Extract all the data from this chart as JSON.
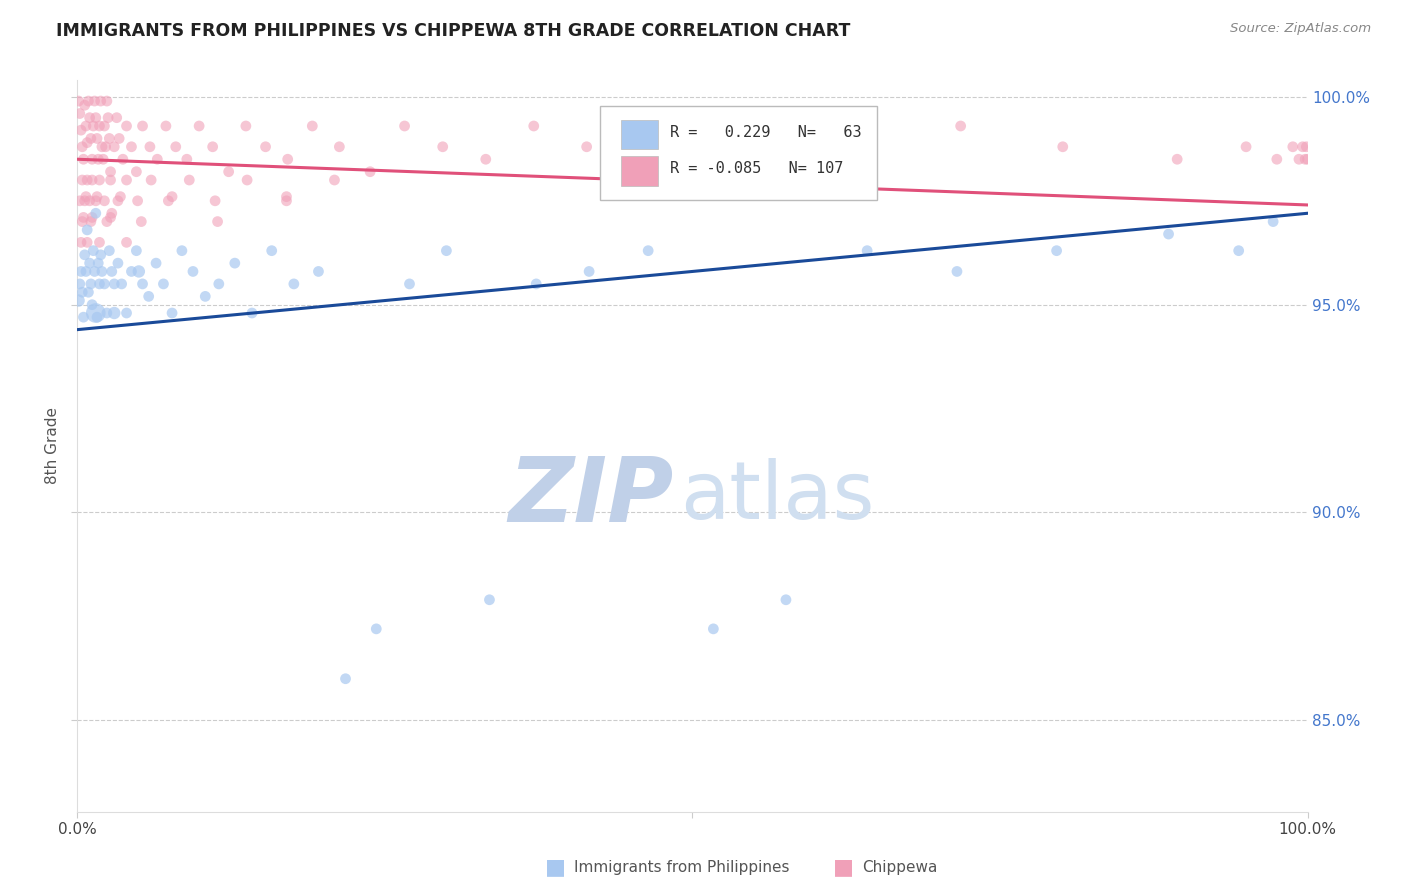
{
  "title": "IMMIGRANTS FROM PHILIPPINES VS CHIPPEWA 8TH GRADE CORRELATION CHART",
  "source_text": "Source: ZipAtlas.com",
  "ylabel": "8th Grade",
  "xlim": [
    0.0,
    1.0
  ],
  "ylim": [
    0.828,
    1.004
  ],
  "yticks": [
    0.85,
    0.9,
    0.95,
    1.0
  ],
  "ytick_labels": [
    "85.0%",
    "90.0%",
    "95.0%",
    "100.0%"
  ],
  "legend_r_blue": "0.229",
  "legend_n_blue": "63",
  "legend_r_pink": "-0.085",
  "legend_n_pink": "107",
  "blue_color": "#A8C8F0",
  "pink_color": "#F0A0B8",
  "blue_line_color": "#1A4A99",
  "pink_line_color": "#E0507A",
  "wm_zip_color": "#C0D0E8",
  "wm_atlas_color": "#D0DFF0",
  "blue_trend_x0": 0.0,
  "blue_trend_y0": 0.944,
  "blue_trend_x1": 1.0,
  "blue_trend_y1": 0.972,
  "pink_trend_x0": 0.0,
  "pink_trend_y0": 0.985,
  "pink_trend_x1": 1.0,
  "pink_trend_y1": 0.974,
  "blue_x": [
    0.001,
    0.002,
    0.003,
    0.004,
    0.005,
    0.006,
    0.007,
    0.008,
    0.009,
    0.01,
    0.011,
    0.012,
    0.013,
    0.014,
    0.015,
    0.016,
    0.017,
    0.018,
    0.019,
    0.02,
    0.022,
    0.024,
    0.026,
    0.028,
    0.03,
    0.033,
    0.036,
    0.04,
    0.044,
    0.048,
    0.053,
    0.058,
    0.064,
    0.07,
    0.077,
    0.085,
    0.094,
    0.104,
    0.115,
    0.128,
    0.142,
    0.158,
    0.176,
    0.196,
    0.218,
    0.243,
    0.27,
    0.3,
    0.335,
    0.373,
    0.416,
    0.464,
    0.517,
    0.576,
    0.642,
    0.715,
    0.796,
    0.887,
    0.944,
    0.972,
    0.015,
    0.03,
    0.05
  ],
  "blue_y": [
    0.951,
    0.955,
    0.958,
    0.953,
    0.947,
    0.962,
    0.958,
    0.968,
    0.953,
    0.96,
    0.955,
    0.95,
    0.963,
    0.958,
    0.972,
    0.947,
    0.96,
    0.955,
    0.962,
    0.958,
    0.955,
    0.948,
    0.963,
    0.958,
    0.955,
    0.96,
    0.955,
    0.948,
    0.958,
    0.963,
    0.955,
    0.952,
    0.96,
    0.955,
    0.948,
    0.963,
    0.958,
    0.952,
    0.955,
    0.96,
    0.948,
    0.963,
    0.955,
    0.958,
    0.86,
    0.872,
    0.955,
    0.963,
    0.879,
    0.955,
    0.958,
    0.963,
    0.872,
    0.879,
    0.963,
    0.958,
    0.963,
    0.967,
    0.963,
    0.97,
    0.948,
    0.948,
    0.958
  ],
  "blue_sizes": [
    80,
    60,
    60,
    60,
    60,
    60,
    60,
    60,
    60,
    60,
    60,
    60,
    60,
    60,
    60,
    60,
    60,
    60,
    60,
    60,
    60,
    60,
    60,
    60,
    60,
    60,
    60,
    60,
    60,
    60,
    60,
    60,
    60,
    60,
    60,
    60,
    60,
    60,
    60,
    60,
    60,
    60,
    60,
    60,
    60,
    60,
    60,
    60,
    60,
    60,
    60,
    60,
    60,
    60,
    60,
    60,
    60,
    60,
    60,
    60,
    200,
    80,
    80
  ],
  "pink_x": [
    0.001,
    0.002,
    0.003,
    0.004,
    0.005,
    0.006,
    0.007,
    0.008,
    0.009,
    0.01,
    0.011,
    0.012,
    0.013,
    0.014,
    0.015,
    0.016,
    0.017,
    0.018,
    0.019,
    0.02,
    0.021,
    0.022,
    0.023,
    0.024,
    0.025,
    0.026,
    0.027,
    0.028,
    0.03,
    0.032,
    0.034,
    0.037,
    0.04,
    0.044,
    0.048,
    0.053,
    0.059,
    0.065,
    0.072,
    0.08,
    0.089,
    0.099,
    0.11,
    0.123,
    0.137,
    0.153,
    0.171,
    0.191,
    0.213,
    0.238,
    0.266,
    0.297,
    0.332,
    0.371,
    0.414,
    0.462,
    0.516,
    0.576,
    0.643,
    0.718,
    0.801,
    0.894,
    0.95,
    0.975,
    0.988,
    0.993,
    0.996,
    0.998,
    0.999,
    1.0,
    0.002,
    0.004,
    0.006,
    0.008,
    0.01,
    0.012,
    0.015,
    0.018,
    0.022,
    0.027,
    0.033,
    0.04,
    0.049,
    0.06,
    0.074,
    0.091,
    0.112,
    0.138,
    0.17,
    0.209,
    0.004,
    0.007,
    0.011,
    0.016,
    0.024,
    0.035,
    0.052,
    0.077,
    0.114,
    0.17,
    0.003,
    0.005,
    0.008,
    0.012,
    0.018,
    0.027,
    0.04
  ],
  "pink_y": [
    0.999,
    0.996,
    0.992,
    0.988,
    0.985,
    0.998,
    0.993,
    0.989,
    0.999,
    0.995,
    0.99,
    0.985,
    0.993,
    0.999,
    0.995,
    0.99,
    0.985,
    0.993,
    0.999,
    0.988,
    0.985,
    0.993,
    0.988,
    0.999,
    0.995,
    0.99,
    0.982,
    0.972,
    0.988,
    0.995,
    0.99,
    0.985,
    0.993,
    0.988,
    0.982,
    0.993,
    0.988,
    0.985,
    0.993,
    0.988,
    0.985,
    0.993,
    0.988,
    0.982,
    0.993,
    0.988,
    0.985,
    0.993,
    0.988,
    0.982,
    0.993,
    0.988,
    0.985,
    0.993,
    0.988,
    0.985,
    0.993,
    0.988,
    0.985,
    0.993,
    0.988,
    0.985,
    0.988,
    0.985,
    0.988,
    0.985,
    0.988,
    0.985,
    0.988,
    0.985,
    0.975,
    0.98,
    0.975,
    0.98,
    0.975,
    0.98,
    0.975,
    0.98,
    0.975,
    0.98,
    0.975,
    0.98,
    0.975,
    0.98,
    0.975,
    0.98,
    0.975,
    0.98,
    0.975,
    0.98,
    0.97,
    0.976,
    0.97,
    0.976,
    0.97,
    0.976,
    0.97,
    0.976,
    0.97,
    0.976,
    0.965,
    0.971,
    0.965,
    0.971,
    0.965,
    0.971,
    0.965
  ],
  "pink_sizes": [
    60,
    60,
    60,
    60,
    60,
    60,
    60,
    60,
    60,
    60,
    60,
    60,
    60,
    60,
    60,
    60,
    60,
    60,
    60,
    60,
    60,
    60,
    60,
    60,
    60,
    60,
    60,
    60,
    60,
    60,
    60,
    60,
    60,
    60,
    60,
    60,
    60,
    60,
    60,
    60,
    60,
    60,
    60,
    60,
    60,
    60,
    60,
    60,
    60,
    60,
    60,
    60,
    60,
    60,
    60,
    60,
    60,
    60,
    60,
    60,
    60,
    60,
    60,
    60,
    60,
    60,
    60,
    60,
    60,
    60,
    60,
    60,
    60,
    60,
    60,
    60,
    60,
    60,
    60,
    60,
    60,
    60,
    60,
    60,
    60,
    60,
    60,
    60,
    60,
    60,
    60,
    60,
    60,
    60,
    60,
    60,
    60,
    60,
    60,
    60,
    60,
    60,
    60,
    60,
    60,
    60,
    60
  ]
}
